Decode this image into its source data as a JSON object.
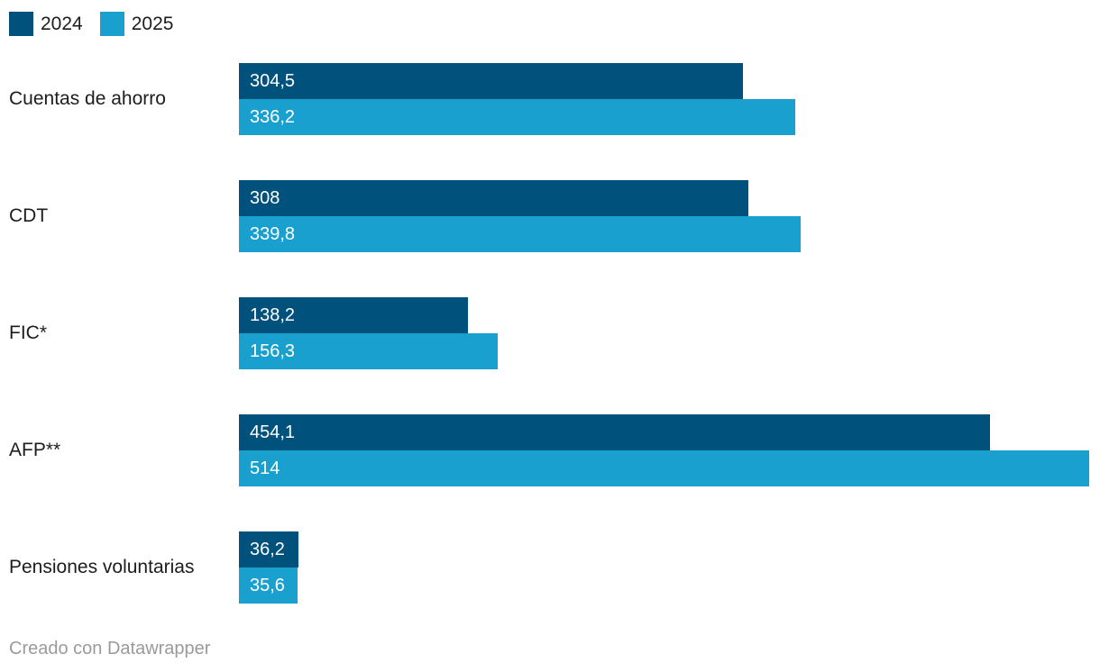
{
  "legend": {
    "items": [
      {
        "label": "2024",
        "color": "#00517c"
      },
      {
        "label": "2025",
        "color": "#1aa0ce"
      }
    ]
  },
  "chart_data": {
    "type": "bar",
    "orientation": "horizontal",
    "title": "",
    "xlabel": "",
    "ylabel": "",
    "grid": false,
    "legend_position": "top",
    "xmax": 514,
    "categories": [
      "Cuentas de ahorro",
      "CDT",
      "FIC*",
      "AFP**",
      "Pensiones voluntarias"
    ],
    "series": [
      {
        "name": "2024",
        "color": "#00517c",
        "values": [
          304.5,
          308,
          138.2,
          454.1,
          36.2
        ],
        "labels": [
          "304,5",
          "308",
          "138,2",
          "454,1",
          "36,2"
        ]
      },
      {
        "name": "2025",
        "color": "#1aa0ce",
        "values": [
          336.2,
          339.8,
          156.3,
          514,
          35.6
        ],
        "labels": [
          "336,2",
          "339,8",
          "156,3",
          "514",
          "35,6"
        ]
      }
    ]
  },
  "footer": {
    "credit": "Creado con Datawrapper"
  }
}
